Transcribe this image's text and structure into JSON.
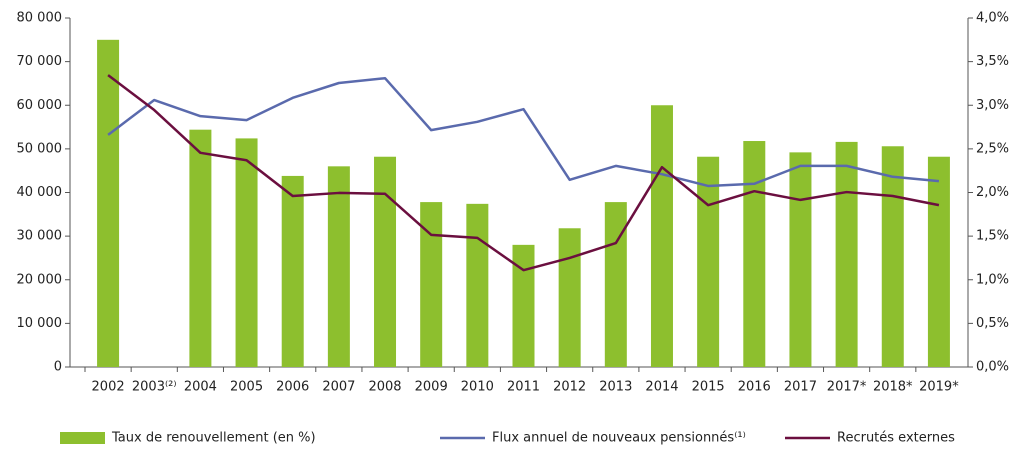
{
  "chart_data": {
    "type": "bar-line",
    "categories": [
      "2002",
      "2003⁽²⁾",
      "2004",
      "2005",
      "2006",
      "2007",
      "2008",
      "2009",
      "2010",
      "2011",
      "2012",
      "2013",
      "2014",
      "2015",
      "2016",
      "2017",
      "2017*",
      "2018*",
      "2019*"
    ],
    "series": [
      {
        "name": "Taux de renouvellement (en %)",
        "color": "#8dbf2e",
        "type": "bar",
        "axis": "y2",
        "values": [
          3.75,
          null,
          2.72,
          2.62,
          2.19,
          2.3,
          2.41,
          1.89,
          1.87,
          1.4,
          1.59,
          1.89,
          3.0,
          2.41,
          2.59,
          2.46,
          2.58,
          2.53,
          2.41
        ]
      },
      {
        "name": "Flux annuel de nouveaux pensionnés⁽¹⁾",
        "color": "#5a6aad",
        "type": "line",
        "values": [
          53200,
          61200,
          57500,
          56600,
          61700,
          65100,
          66200,
          54300,
          56200,
          59100,
          42900,
          46100,
          44200,
          41500,
          42000,
          46100,
          46100,
          43600,
          42600
        ]
      },
      {
        "name": "Recrutés externes",
        "color": "#6b0f3f",
        "type": "line",
        "values": [
          66900,
          58900,
          49100,
          47400,
          39200,
          39900,
          39700,
          30300,
          29600,
          22200,
          25000,
          28400,
          45800,
          37100,
          40300,
          38300,
          40100,
          39200,
          37100
        ]
      }
    ],
    "ylim": [
      0,
      80000
    ],
    "yticks": [
      0,
      {
        "value": 10000,
        "label": "10 000"
      },
      {
        "value": 20000,
        "label": "20 000"
      },
      {
        "value": 30000,
        "label": "30 000"
      },
      {
        "value": 40000,
        "label": "40 000"
      },
      {
        "value": 50000,
        "label": "50 000"
      },
      {
        "value": 60000,
        "label": "60 000"
      },
      {
        "value": 70000,
        "label": "70 000"
      },
      {
        "value": 80000,
        "label": "80 000"
      }
    ],
    "y2lim": [
      0,
      4
    ],
    "y2ticks": [
      {
        "value": 0,
        "label": "0,0%"
      },
      {
        "value": 0.5,
        "label": "0,5%"
      },
      {
        "value": 1,
        "label": "1,0%"
      },
      {
        "value": 1.5,
        "label": "1,5%"
      },
      {
        "value": 2,
        "label": "2,0%"
      },
      {
        "value": 2.5,
        "label": "2,5%"
      },
      {
        "value": 3,
        "label": "3,0%"
      },
      {
        "value": 3.5,
        "label": "3,5%"
      },
      {
        "value": 4,
        "label": "4,0%"
      }
    ],
    "grid": false,
    "legend": "bottom"
  }
}
